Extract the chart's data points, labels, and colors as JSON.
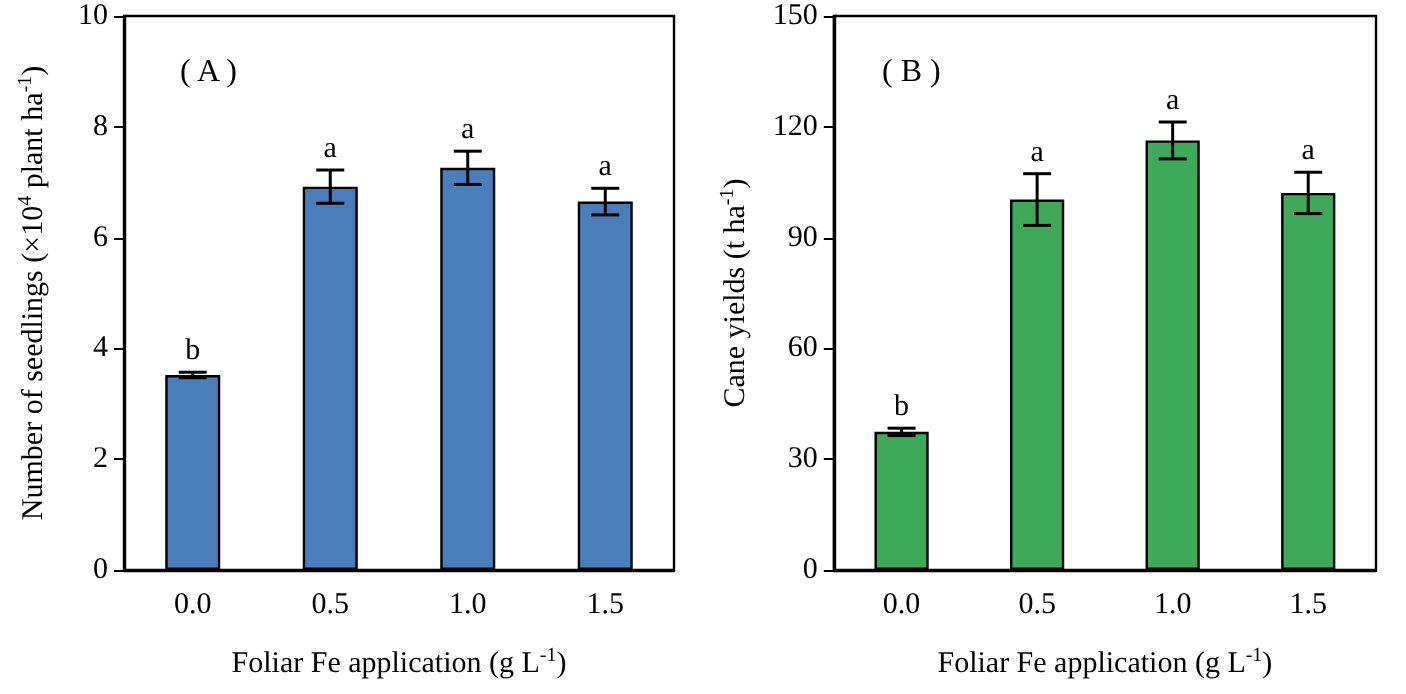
{
  "chart_data": [
    {
      "type": "bar",
      "xlabel": "Foliar Fe application (g L$^{-1}$)",
      "ylabel": "Number of seedlings (×10$^{4}$ plant ha$^{-1}$)",
      "categories": [
        "0.0",
        "0.5",
        "1.0",
        "1.5"
      ],
      "series": [
        {
          "color": "#4a7ebb",
          "values": [
            3.52,
            6.92,
            7.26,
            6.65
          ],
          "errors": [
            0.05,
            0.3,
            0.3,
            0.24
          ],
          "value_labels": [
            "b",
            "a",
            "a",
            "a"
          ]
        }
      ],
      "ylim": [
        0,
        10
      ],
      "yticks": [
        0,
        2,
        4,
        6,
        8,
        10
      ],
      "grid": false,
      "annotations": [
        "( A )"
      ]
    },
    {
      "type": "bar",
      "xlabel": "Foliar Fe application (g L$^{-1}$)",
      "ylabel": "Cane yields (t ha$^{-1}$)",
      "categories": [
        "0.0",
        "0.5",
        "1.0",
        "1.5"
      ],
      "series": [
        {
          "color": "#3fa95a",
          "values": [
            37.4,
            100.3,
            116.3,
            102.1
          ],
          "errors": [
            1,
            7,
            5,
            5.6
          ],
          "value_labels": [
            "b",
            "a",
            "a",
            "a"
          ]
        }
      ],
      "ylim": [
        0,
        150
      ],
      "yticks": [
        0,
        30,
        60,
        90,
        120,
        150
      ],
      "grid": false,
      "annotations": [
        "( B )"
      ]
    }
  ]
}
